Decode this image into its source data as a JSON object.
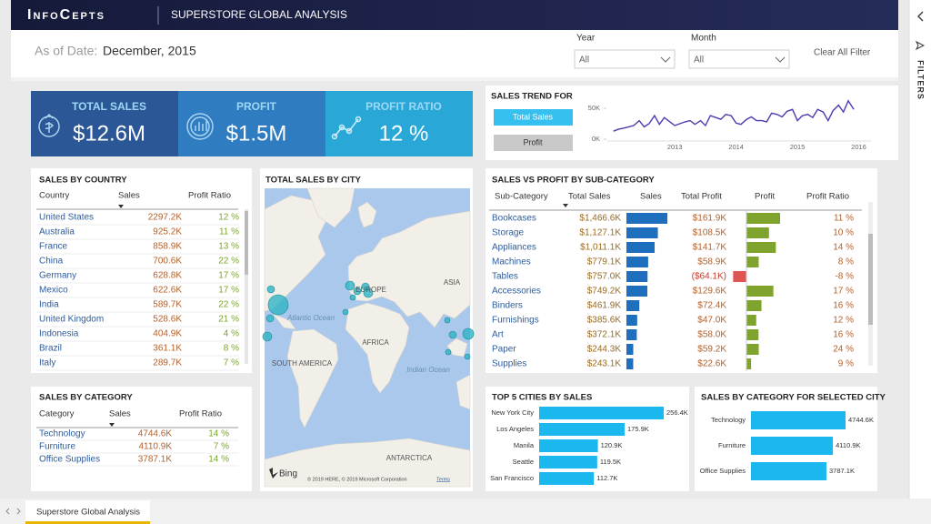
{
  "header": {
    "brand": "InfoCepts",
    "title": "SUPERSTORE GLOBAL ANALYSIS"
  },
  "filters": {
    "as_of_label": "As of Date:",
    "as_of_value": "December, 2015",
    "year_label": "Year",
    "year_value": "All",
    "month_label": "Month",
    "month_value": "All",
    "clear": "Clear All Filter",
    "pane": "FILTERS"
  },
  "kpis": [
    {
      "label": "TOTAL SALES",
      "value": "$12.6M"
    },
    {
      "label": "PROFIT",
      "value": "$1.5M"
    },
    {
      "label": "PROFIT RATIO",
      "value": "12 %"
    }
  ],
  "sales_trend": {
    "type": "line",
    "title": "SALES TREND FOR",
    "buttons": [
      "Total Sales",
      "Profit"
    ],
    "x": [
      2012.0,
      2012.08,
      2012.17,
      2012.25,
      2012.33,
      2012.42,
      2012.5,
      2012.58,
      2012.67,
      2012.75,
      2012.83,
      2012.92,
      2013.0,
      2013.08,
      2013.17,
      2013.25,
      2013.33,
      2013.42,
      2013.5,
      2013.58,
      2013.67,
      2013.75,
      2013.83,
      2013.92,
      2014.0,
      2014.08,
      2014.17,
      2014.25,
      2014.33,
      2014.42,
      2014.5,
      2014.58,
      2014.67,
      2014.75,
      2014.83,
      2014.92,
      2015.0,
      2015.08,
      2015.17,
      2015.25,
      2015.33,
      2015.42,
      2015.5,
      2015.58,
      2015.67,
      2015.75,
      2015.83,
      2015.92
    ],
    "values": [
      13,
      16,
      18,
      20,
      22,
      30,
      20,
      25,
      38,
      24,
      35,
      28,
      22,
      25,
      28,
      30,
      24,
      30,
      22,
      38,
      35,
      32,
      40,
      38,
      26,
      24,
      32,
      36,
      30,
      30,
      28,
      42,
      40,
      36,
      45,
      48,
      30,
      38,
      40,
      35,
      48,
      44,
      30,
      46,
      55,
      44,
      62,
      48
    ],
    "color": "#4b3bb0",
    "xlim": [
      2011.9,
      2016.2
    ],
    "ylim": [
      0,
      72
    ],
    "yticks": [
      {
        "value": 0,
        "label": "0K"
      },
      {
        "value": 50,
        "label": "50K"
      }
    ],
    "xticks": [
      2013,
      2014,
      2015,
      2016
    ]
  },
  "sales_by_country": {
    "title": "SALES BY COUNTRY",
    "columns": [
      "Country",
      "Sales",
      "Profit Ratio"
    ],
    "rows": [
      [
        "United States",
        "2297.2K",
        "12 %"
      ],
      [
        "Australia",
        "925.2K",
        "11 %"
      ],
      [
        "France",
        "858.9K",
        "13 %"
      ],
      [
        "China",
        "700.6K",
        "22 %"
      ],
      [
        "Germany",
        "628.8K",
        "17 %"
      ],
      [
        "Mexico",
        "622.6K",
        "17 %"
      ],
      [
        "India",
        "589.7K",
        "22 %"
      ],
      [
        "United Kingdom",
        "528.6K",
        "21 %"
      ],
      [
        "Indonesia",
        "404.9K",
        "4 %"
      ],
      [
        "Brazil",
        "361.1K",
        "8 %"
      ],
      [
        "Italy",
        "289.7K",
        "7 %"
      ]
    ]
  },
  "sales_by_category": {
    "title": "SALES BY CATEGORY",
    "columns": [
      "Category",
      "Sales",
      "Profit Ratio"
    ],
    "rows": [
      [
        "Technology",
        "4744.6K",
        "14 %"
      ],
      [
        "Furniture",
        "4110.9K",
        "7 %"
      ],
      [
        "Office Supplies",
        "3787.1K",
        "14 %"
      ]
    ]
  },
  "map": {
    "title": "TOTAL SALES BY CITY",
    "labels": [
      "EUROPE",
      "ASIA",
      "AFRICA",
      "SOUTH AMERICA",
      "ANTARCTICA"
    ],
    "oceans": [
      "Atlantic Ocean",
      "Indian Ocean"
    ],
    "brand": "Bing",
    "attribution": "© 2019 HERE, © 2019 Microsoft Corporation",
    "terms": "Terms"
  },
  "sales_vs_profit": {
    "title": "SALES VS PROFIT BY SUB-CATEGORY",
    "columns": [
      "Sub-Category",
      "Total Sales",
      "Sales",
      "Total Profit",
      "Profit",
      "Profit Ratio"
    ],
    "sales_color": "#1f6fbf",
    "profit_color": "#7fa32d",
    "loss_color": "#e05454",
    "rows": [
      {
        "name": "Bookcases",
        "total_sales": "$1,466.6K",
        "sales": 1466.6,
        "total_profit": "$161.9K",
        "profit": 161.9,
        "profit_ratio": "11 %"
      },
      {
        "name": "Storage",
        "total_sales": "$1,127.1K",
        "sales": 1127.1,
        "total_profit": "$108.5K",
        "profit": 108.5,
        "profit_ratio": "10 %"
      },
      {
        "name": "Appliances",
        "total_sales": "$1,011.1K",
        "sales": 1011.1,
        "total_profit": "$141.7K",
        "profit": 141.7,
        "profit_ratio": "14 %"
      },
      {
        "name": "Machines",
        "total_sales": "$779.1K",
        "sales": 779.1,
        "total_profit": "$58.9K",
        "profit": 58.9,
        "profit_ratio": "8 %"
      },
      {
        "name": "Tables",
        "total_sales": "$757.0K",
        "sales": 757.0,
        "total_profit": "($64.1K)",
        "profit": -64.1,
        "profit_ratio": "-8 %"
      },
      {
        "name": "Accessories",
        "total_sales": "$749.2K",
        "sales": 749.2,
        "total_profit": "$129.6K",
        "profit": 129.6,
        "profit_ratio": "17 %"
      },
      {
        "name": "Binders",
        "total_sales": "$461.9K",
        "sales": 461.9,
        "total_profit": "$72.4K",
        "profit": 72.4,
        "profit_ratio": "16 %"
      },
      {
        "name": "Furnishings",
        "total_sales": "$385.6K",
        "sales": 385.6,
        "total_profit": "$47.0K",
        "profit": 47.0,
        "profit_ratio": "12 %"
      },
      {
        "name": "Art",
        "total_sales": "$372.1K",
        "sales": 372.1,
        "total_profit": "$58.0K",
        "profit": 58.0,
        "profit_ratio": "16 %"
      },
      {
        "name": "Paper",
        "total_sales": "$244.3K",
        "sales": 244.3,
        "total_profit": "$59.2K",
        "profit": 59.2,
        "profit_ratio": "24 %"
      },
      {
        "name": "Supplies",
        "total_sales": "$243.1K",
        "sales": 243.1,
        "total_profit": "$22.6K",
        "profit": 22.6,
        "profit_ratio": "9 %"
      }
    ]
  },
  "top_cities": {
    "type": "bar",
    "title": "TOP 5 CITIES BY SALES",
    "categories": [
      "New York City",
      "Los Angeles",
      "Manila",
      "Seattle",
      "San Francisco"
    ],
    "values": [
      256.4,
      175.9,
      120.9,
      119.5,
      112.7
    ],
    "value_labels": [
      "256.4K",
      "175.9K",
      "120.9K",
      "119.5K",
      "112.7K"
    ],
    "color": "#1ab8ef"
  },
  "city_category": {
    "type": "bar",
    "title": "SALES BY CATEGORY FOR SELECTED CITY",
    "categories": [
      "Technology",
      "Furniture",
      "Office Supplies"
    ],
    "values": [
      4744.6,
      4110.9,
      3787.1
    ],
    "value_labels": [
      "4744.6K",
      "4110.9K",
      "3787.1K"
    ],
    "color": "#1ab8ef"
  },
  "tabs": [
    "Superstore Global Analysis"
  ]
}
